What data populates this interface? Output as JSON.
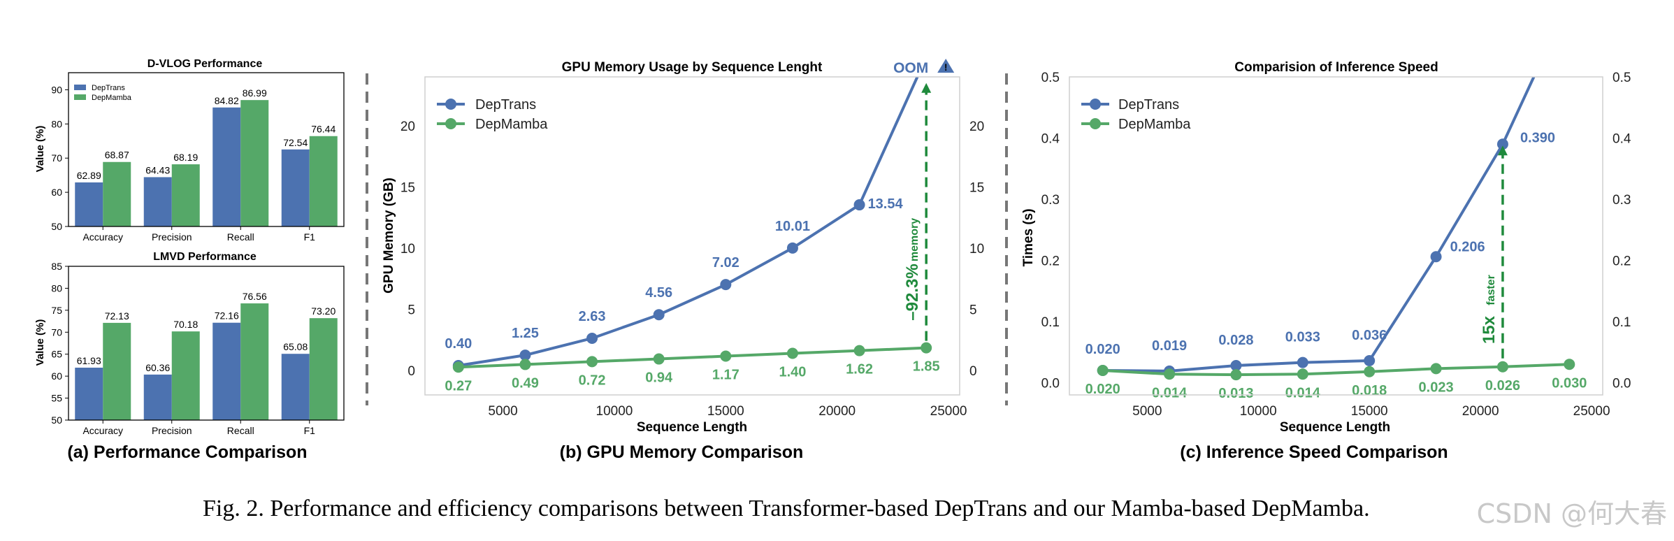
{
  "colors": {
    "depTrans": "#4c72b0",
    "depMamba": "#55a868",
    "annotation": "#1f8a3c",
    "divider": "#777777"
  },
  "chart_data": [
    {
      "id": "dvlog",
      "type": "bar",
      "title": "D-VLOG Performance",
      "ylabel": "Value (%)",
      "categories": [
        "Accuracy",
        "Precision",
        "Recall",
        "F1"
      ],
      "ylim": [
        50,
        95
      ],
      "yticks": [
        50,
        60,
        70,
        80,
        90
      ],
      "legend": {
        "position": "top-left",
        "entries": [
          "DepTrans",
          "DepMamba"
        ]
      },
      "series": [
        {
          "name": "DepTrans",
          "values": [
            62.89,
            64.43,
            84.82,
            72.54
          ],
          "labels": [
            "62.89",
            "64.43",
            "84.82",
            "72.54"
          ]
        },
        {
          "name": "DepMamba",
          "values": [
            68.87,
            68.19,
            86.99,
            76.44
          ],
          "labels": [
            "68.87",
            "68.19",
            "86.99",
            "76.44"
          ]
        }
      ]
    },
    {
      "id": "lmvd",
      "type": "bar",
      "title": "LMVD Performance",
      "ylabel": "Value (%)",
      "categories": [
        "Accuracy",
        "Precision",
        "Recall",
        "F1"
      ],
      "ylim": [
        50,
        85
      ],
      "yticks": [
        50,
        55,
        60,
        65,
        70,
        75,
        80,
        85
      ],
      "series": [
        {
          "name": "DepTrans",
          "values": [
            61.93,
            60.36,
            72.16,
            65.08
          ],
          "labels": [
            "61.93",
            "60.36",
            "72.16",
            "65.08"
          ]
        },
        {
          "name": "DepMamba",
          "values": [
            72.13,
            70.18,
            76.56,
            73.2
          ],
          "labels": [
            "72.13",
            "70.18",
            "76.56",
            "73.20"
          ]
        }
      ]
    },
    {
      "id": "gpu",
      "type": "line",
      "title": "GPU Memory Usage by Sequence Lenght",
      "xlabel": "Sequence Length",
      "ylabel": "GPU Memory (GB)",
      "xlim": [
        1500,
        25500
      ],
      "ylim": [
        -2,
        24
      ],
      "xticks": [
        5000,
        10000,
        15000,
        20000,
        25000
      ],
      "yticks": [
        0,
        5,
        10,
        15,
        20
      ],
      "legend": {
        "position": "top-left",
        "entries": [
          "DepTrans",
          "DepMamba"
        ]
      },
      "series": [
        {
          "name": "DepTrans",
          "x": [
            3000,
            6000,
            9000,
            12000,
            15000,
            18000,
            21000
          ],
          "y": [
            0.4,
            1.25,
            2.63,
            4.56,
            7.02,
            10.01,
            13.54
          ],
          "labels": [
            "0.40",
            "1.25",
            "2.63",
            "4.56",
            "7.02",
            "10.01",
            "13.54"
          ],
          "overflow_end": [
            23600,
            24
          ]
        },
        {
          "name": "DepMamba",
          "x": [
            3000,
            6000,
            9000,
            12000,
            15000,
            18000,
            21000,
            24000
          ],
          "y": [
            0.27,
            0.49,
            0.72,
            0.94,
            1.17,
            1.4,
            1.62,
            1.85
          ],
          "labels": [
            "0.27",
            "0.49",
            "0.72",
            "0.94",
            "1.17",
            "1.40",
            "1.62",
            "1.85"
          ]
        }
      ],
      "annotations": {
        "oom": "OOM",
        "reduction": "–92.3%",
        "reduction_unit": "memory",
        "arrow_x": 24000,
        "arrow_from": 1.85,
        "arrow_to": 23.5
      }
    },
    {
      "id": "speed",
      "type": "line",
      "title": "Comparision of Inference Speed",
      "xlabel": "Sequence Length",
      "ylabel": "Times (s)",
      "xlim": [
        1500,
        25500
      ],
      "ylim": [
        -0.02,
        0.5
      ],
      "xticks": [
        5000,
        10000,
        15000,
        20000,
        25000
      ],
      "yticks": [
        0.0,
        0.1,
        0.2,
        0.3,
        0.4,
        0.5
      ],
      "ytick_labels": [
        "0.0",
        "0.1",
        "0.2",
        "0.3",
        "0.4",
        "0.5"
      ],
      "legend": {
        "position": "top-left",
        "entries": [
          "DepTrans",
          "DepMamba"
        ]
      },
      "series": [
        {
          "name": "DepTrans",
          "x": [
            3000,
            6000,
            9000,
            12000,
            15000,
            18000,
            21000
          ],
          "y": [
            0.02,
            0.019,
            0.028,
            0.033,
            0.036,
            0.206,
            0.39
          ],
          "labels": [
            "0.020",
            "0.019",
            "0.028",
            "0.033",
            "0.036",
            "0.206",
            "0.390"
          ],
          "overflow_end": [
            22400,
            0.5
          ]
        },
        {
          "name": "DepMamba",
          "x": [
            3000,
            6000,
            9000,
            12000,
            15000,
            18000,
            21000,
            24000
          ],
          "y": [
            0.02,
            0.014,
            0.013,
            0.014,
            0.018,
            0.023,
            0.026,
            0.03
          ],
          "labels": [
            "0.020",
            "0.014",
            "0.013",
            "0.014",
            "0.018",
            "0.023",
            "0.026",
            "0.030"
          ]
        }
      ],
      "annotations": {
        "speedup": "15x",
        "speedup_unit": "faster",
        "arrow_x": 21000,
        "arrow_from": 0.026,
        "arrow_to": 0.39
      }
    }
  ],
  "subcaptions": {
    "a": "(a) Performance Comparison",
    "b": "(b) GPU Memory Comparison",
    "c": "(c) Inference Speed Comparison"
  },
  "caption": "Fig. 2.  Performance and efficiency comparisons between Transformer-based DepTrans and our Mamba-based DepMamba.",
  "watermark": "CSDN @何大春"
}
